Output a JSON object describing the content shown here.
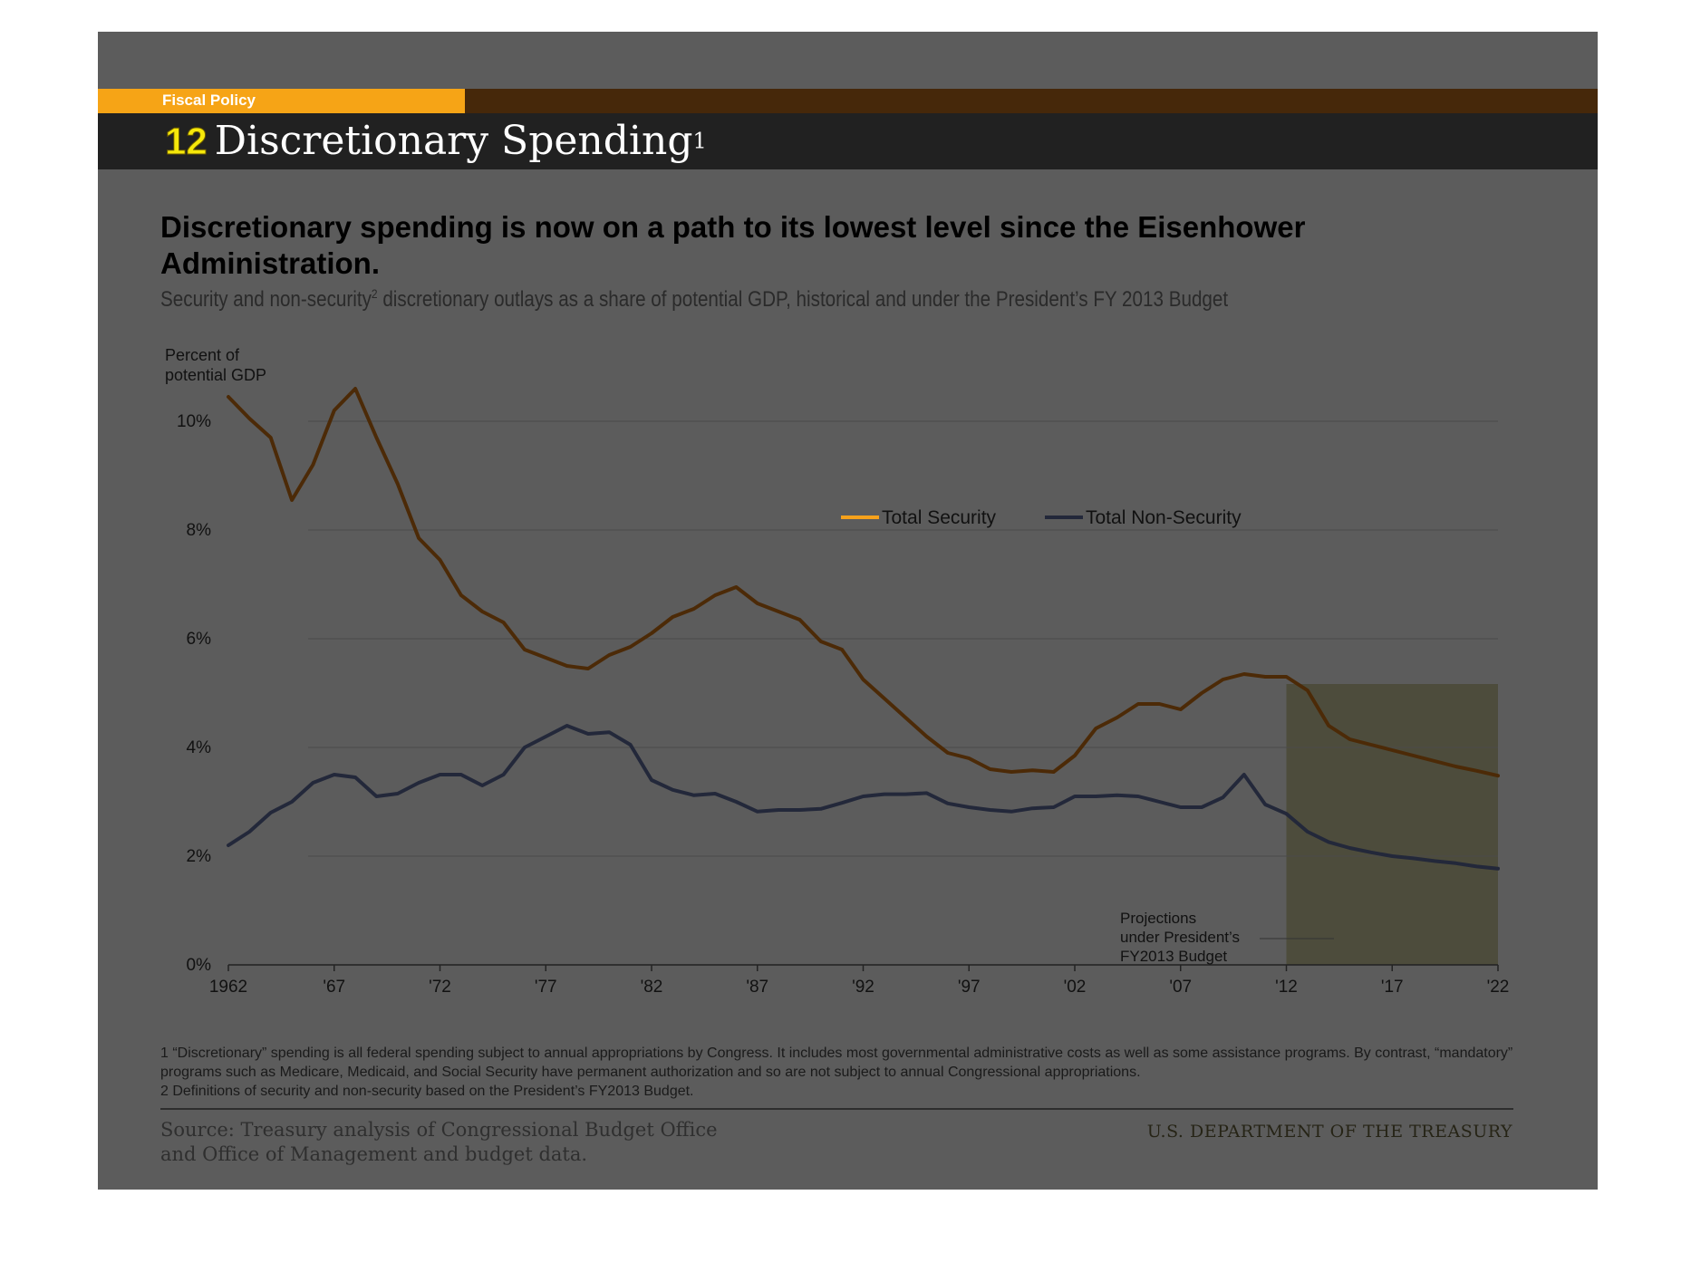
{
  "header": {
    "section_label": "Fiscal Policy",
    "number": "12",
    "title": "Discretionary Spending",
    "title_footnote": "1"
  },
  "headline": "Discretionary spending is now on a path to its lowest level since the Eisenhower Administration.",
  "subtitle": {
    "part1": "Security and non-security",
    "sup": "2",
    "part2": " discretionary outlays as a share of potential GDP, historical and under the President’s FY 2013 Budget"
  },
  "footnotes": [
    "1 “Discretionary” spending is all federal spending subject to annual appropriations by Congress. It includes most governmental administrative costs as well as some assistance programs. By contrast, “mandatory” programs such as Medicare, Medicaid, and Social Security have permanent authorization and so are not subject to annual Congressional appropriations.",
    "2 Definitions of security and non-security based on the President’s FY2013 Budget."
  ],
  "source": {
    "line1": "Source: Treasury analysis of Congressional Budget Office",
    "line2": "and Office of Management and budget data."
  },
  "department": "U.S. DEPARTMENT OF THE TREASURY",
  "colors": {
    "brand_orange": "#f6a416",
    "brand_dark_brown": "#46280a",
    "title_number_yellow": "#f6e80a",
    "security_line": "#f7a21b",
    "security_line_dim": "#4c2a07",
    "non_security_line": "#23283a",
    "projection_shade": "#4d4c3c"
  },
  "chart_data": {
    "type": "line",
    "title": "",
    "ylabel_line1": "Percent of",
    "ylabel_line2": "potential GDP",
    "xlabel": "",
    "ylim": [
      0,
      10
    ],
    "yticks": [
      0,
      2,
      4,
      6,
      8,
      10
    ],
    "ytick_labels": [
      "0%",
      "2%",
      "4%",
      "6%",
      "8%",
      "10%"
    ],
    "xlim": [
      1962,
      2022
    ],
    "xticks": [
      1962,
      1967,
      1972,
      1977,
      1982,
      1987,
      1992,
      1997,
      2002,
      2007,
      2012,
      2017,
      2022
    ],
    "xtick_labels": [
      "1962",
      "'67",
      "'72",
      "'77",
      "'82",
      "'87",
      "'92",
      "'97",
      "'02",
      "'07",
      "'12",
      "'17",
      "'22"
    ],
    "grid": true,
    "legend_position": "center-right",
    "x": [
      1962,
      1963,
      1964,
      1965,
      1966,
      1967,
      1968,
      1969,
      1970,
      1971,
      1972,
      1973,
      1974,
      1975,
      1976,
      1977,
      1978,
      1979,
      1980,
      1981,
      1982,
      1983,
      1984,
      1985,
      1986,
      1987,
      1988,
      1989,
      1990,
      1991,
      1992,
      1993,
      1994,
      1995,
      1996,
      1997,
      1998,
      1999,
      2000,
      2001,
      2002,
      2003,
      2004,
      2005,
      2006,
      2007,
      2008,
      2009,
      2010,
      2011,
      2012,
      2013,
      2014,
      2015,
      2016,
      2017,
      2018,
      2019,
      2020,
      2021,
      2022
    ],
    "series": [
      {
        "name": "Total Security",
        "values": [
          10.45,
          10.05,
          9.7,
          8.55,
          9.2,
          10.2,
          10.6,
          9.7,
          8.85,
          7.85,
          7.45,
          6.8,
          6.5,
          6.3,
          5.8,
          5.65,
          5.5,
          5.45,
          5.7,
          5.85,
          6.1,
          6.4,
          6.55,
          6.8,
          6.95,
          6.65,
          6.5,
          6.35,
          5.95,
          5.8,
          5.25,
          4.9,
          4.55,
          4.2,
          3.9,
          3.8,
          3.6,
          3.55,
          3.58,
          3.55,
          3.85,
          4.35,
          4.55,
          4.8,
          4.8,
          4.7,
          5.0,
          5.25,
          5.35,
          5.3,
          5.3,
          5.05,
          4.4,
          4.15,
          4.05,
          3.95,
          3.85,
          3.75,
          3.65,
          3.57,
          3.48
        ]
      },
      {
        "name": "Total Non-Security",
        "values": [
          2.2,
          2.45,
          2.8,
          3.0,
          3.35,
          3.5,
          3.45,
          3.1,
          3.15,
          3.35,
          3.5,
          3.5,
          3.3,
          3.5,
          4.0,
          4.2,
          4.4,
          4.25,
          4.28,
          4.05,
          3.4,
          3.22,
          3.12,
          3.15,
          3.0,
          2.82,
          2.85,
          2.85,
          2.87,
          2.98,
          3.1,
          3.14,
          3.14,
          3.16,
          2.97,
          2.9,
          2.85,
          2.82,
          2.88,
          2.9,
          3.1,
          3.1,
          3.12,
          3.1,
          3.0,
          2.9,
          2.9,
          3.08,
          3.5,
          2.95,
          2.78,
          2.45,
          2.26,
          2.15,
          2.07,
          2.0,
          1.96,
          1.91,
          1.87,
          1.81,
          1.77
        ]
      }
    ],
    "projection": {
      "start": 2012,
      "end": 2022,
      "label_lines": [
        "Projections",
        "under President’s",
        "FY2013 Budget"
      ]
    }
  }
}
